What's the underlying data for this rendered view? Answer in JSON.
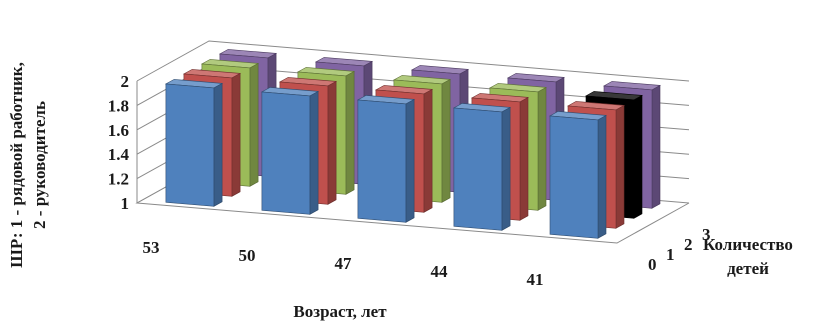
{
  "chart_data": {
    "type": "bar",
    "subtype": "3d-column",
    "x_axis": {
      "label": "Возраст, лет",
      "categories": [
        "53",
        "50",
        "47",
        "44",
        "41"
      ]
    },
    "y_axis": {
      "label_line1": "ШР: 1 - рядовой работник,",
      "label_line2": "2 - руководитель",
      "range": [
        1,
        2
      ],
      "ticks": [
        "1",
        "1.2",
        "1.4",
        "1.6",
        "1.8",
        "2"
      ]
    },
    "z_axis": {
      "label_line1": "Количество",
      "label_line2": "детей",
      "categories": [
        "0",
        "1",
        "2",
        "3"
      ]
    },
    "series": [
      {
        "key": "0",
        "color": "#4F81BD",
        "values": [
          1.97,
          1.97,
          1.97,
          1.97,
          1.97
        ]
      },
      {
        "key": "1",
        "color": "#C0504D",
        "values": [
          1.97,
          1.97,
          1.97,
          1.97,
          1.97
        ]
      },
      {
        "key": "2",
        "color": "#9BBB59",
        "values": [
          1.97,
          1.97,
          1.97,
          1.97,
          1.97
        ]
      },
      {
        "key": "3",
        "color": "#8064A2",
        "values": [
          1.97,
          1.97,
          1.97,
          1.97,
          1.97
        ]
      }
    ],
    "special_colors": {
      "2|41": "#000000"
    },
    "grid": true
  }
}
